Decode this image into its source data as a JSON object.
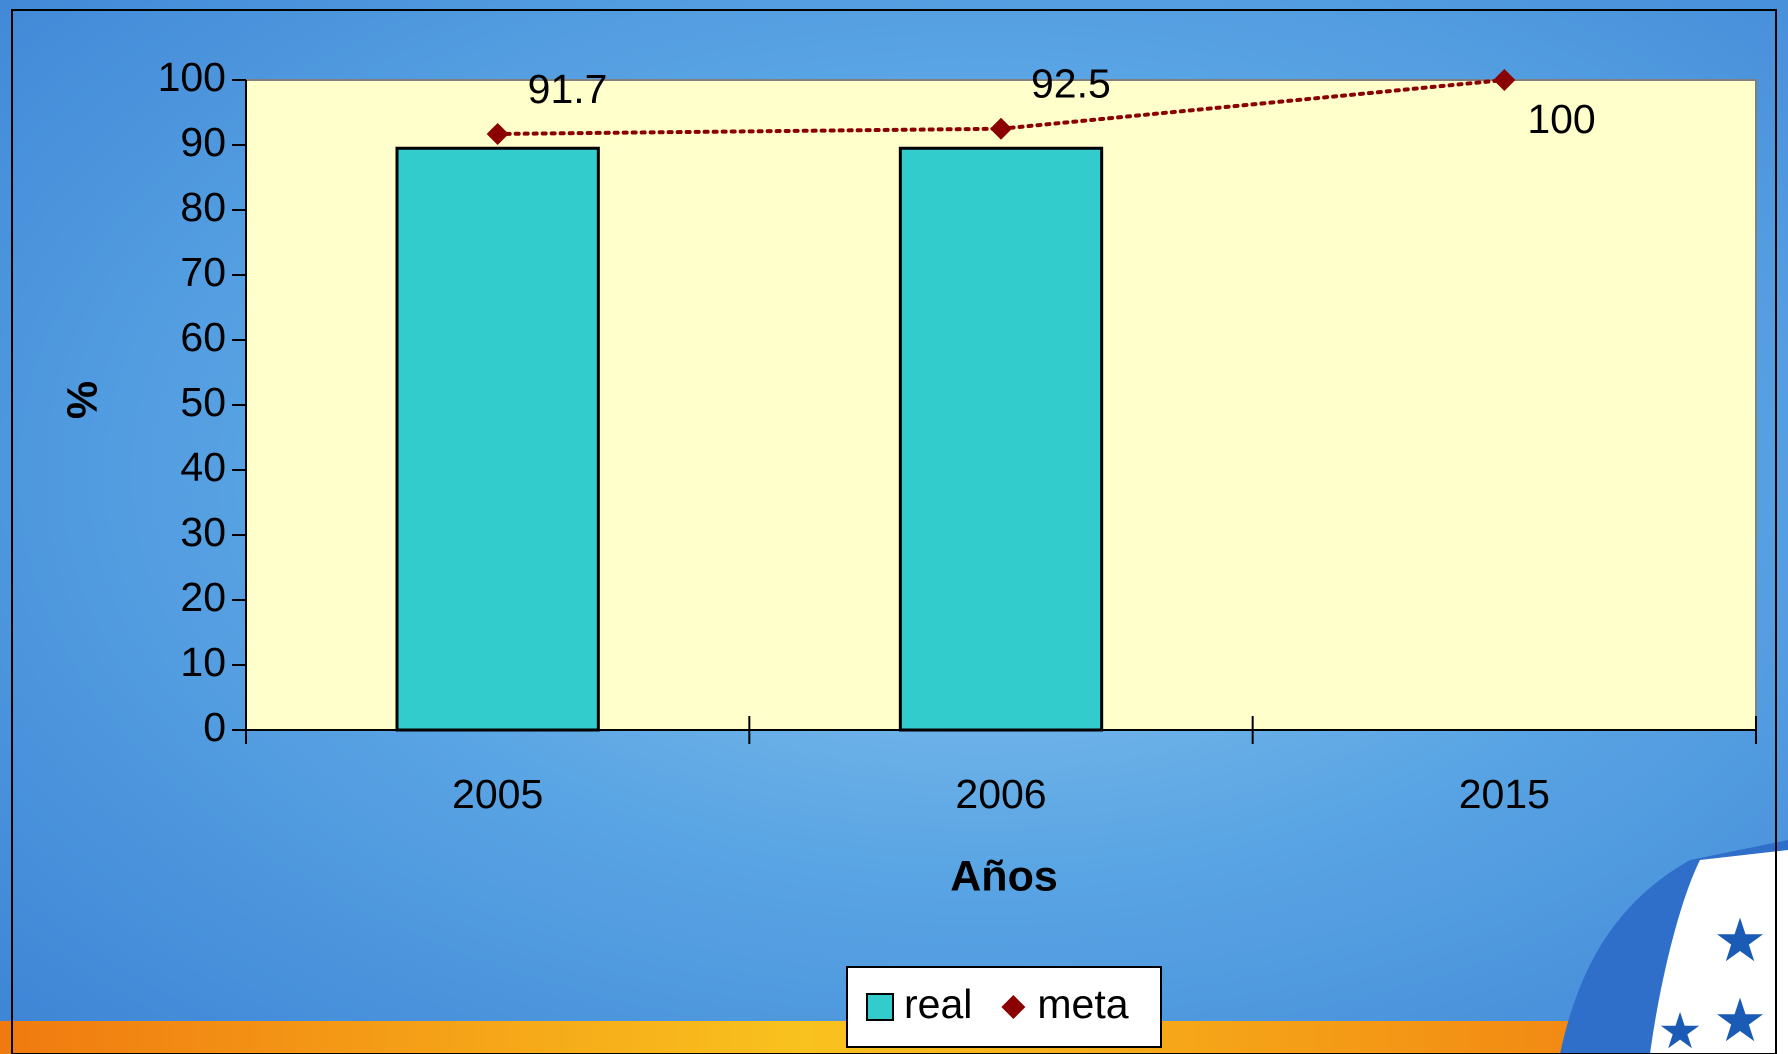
{
  "chart_data": {
    "type": "bar",
    "categories": [
      "2005",
      "2006",
      "2015"
    ],
    "series": [
      {
        "name": "real",
        "type": "bar",
        "color": "#33cccc",
        "values": [
          89.5,
          89.5,
          null
        ]
      },
      {
        "name": "meta",
        "type": "line",
        "color": "#8b0000",
        "values": [
          91.7,
          92.5,
          100
        ]
      }
    ],
    "x_label": "Años",
    "y_label": "%",
    "ylim": [
      0,
      100
    ],
    "yticks": [
      0,
      10,
      20,
      30,
      40,
      50,
      60,
      70,
      80,
      90,
      100
    ],
    "legend": "bottom",
    "plot_background": "#ffffcc"
  }
}
